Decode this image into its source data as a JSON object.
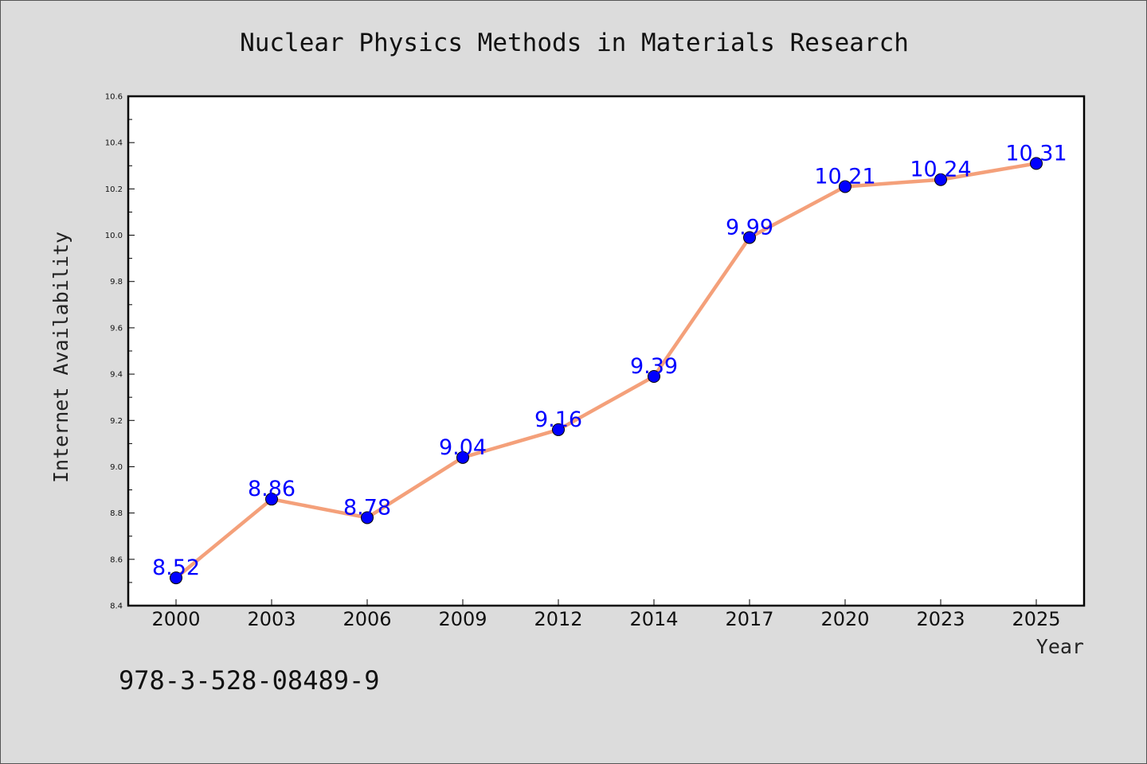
{
  "chart_data": {
    "type": "line",
    "title": "Nuclear Physics Methods in Materials Research",
    "xlabel": "Year",
    "ylabel": "Internet Availability",
    "categories": [
      "2000",
      "2003",
      "2006",
      "2009",
      "2012",
      "2014",
      "2017",
      "2020",
      "2023",
      "2025"
    ],
    "series": [
      {
        "values": [
          8.52,
          8.86,
          8.78,
          9.04,
          9.16,
          9.39,
          9.99,
          10.21,
          10.24,
          10.31
        ],
        "labels": [
          "8.52",
          "8.86",
          "8.78",
          "9.04",
          "9.16",
          "9.39",
          "9.99",
          "10.21",
          "10.24",
          "10.31"
        ],
        "line_color": "#f4a07a",
        "marker_color": "#0000ff",
        "label_color": "#0000ff"
      }
    ],
    "ylim": [
      8.4,
      10.6
    ],
    "yticks": [
      "8.4",
      "8.6",
      "8.8",
      "9.0",
      "9.2",
      "9.4",
      "9.6",
      "9.8",
      "10.0",
      "10.2",
      "10.4",
      "10.6"
    ],
    "grid": false,
    "legend": "none"
  },
  "footer": {
    "code": "978-3-528-08489-9"
  },
  "colors": {
    "background": "#dcdcdc",
    "plot_background": "#ffffff"
  }
}
